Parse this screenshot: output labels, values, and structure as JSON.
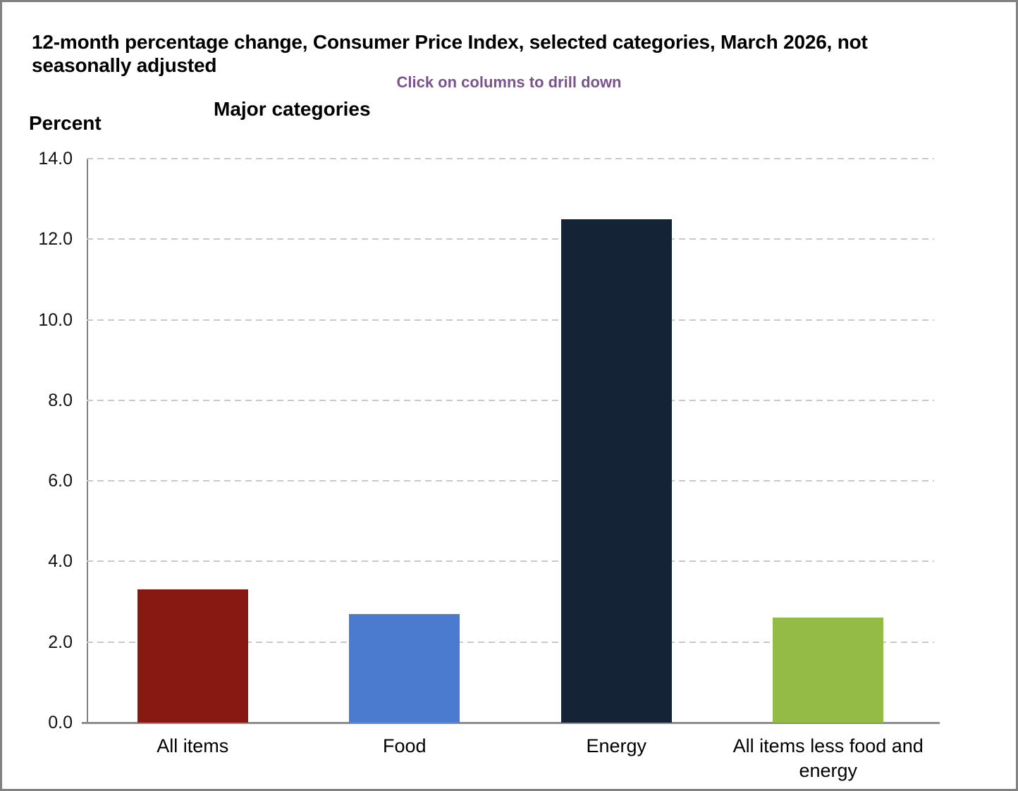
{
  "page": {
    "title": "12-month percentage change, Consumer Price Index, selected categories, March 2026, not seasonally adjusted",
    "subtitle": "Click on columns to drill down",
    "section_heading": "Major categories",
    "y_axis_title": "Percent"
  },
  "colors": {
    "subtitle_text": "#7B538C",
    "axis_line": "#808080",
    "gridline": "#C9C9C9",
    "baseline": "#8C8C8C"
  },
  "chart_data": {
    "type": "bar",
    "title": "Major categories",
    "subtitle": "Click on columns to drill down",
    "ylabel": "Percent",
    "xlabel": "",
    "ylim": [
      0,
      14
    ],
    "ytick_step": 2,
    "ytick_labels": [
      "0.0",
      "2.0",
      "4.0",
      "6.0",
      "8.0",
      "10.0",
      "12.0",
      "14.0"
    ],
    "grid": "horizontal dashed",
    "legend": "none",
    "categories": [
      "All items",
      "Food",
      "Energy",
      "All items less food and energy"
    ],
    "values": [
      3.3,
      2.7,
      12.5,
      2.6
    ],
    "bar_colors": [
      "#871912",
      "#4A7BCE",
      "#152336",
      "#93BB45"
    ],
    "category_slugs": [
      "all-items",
      "food",
      "energy",
      "all-items-less-food-and-energy"
    ]
  }
}
